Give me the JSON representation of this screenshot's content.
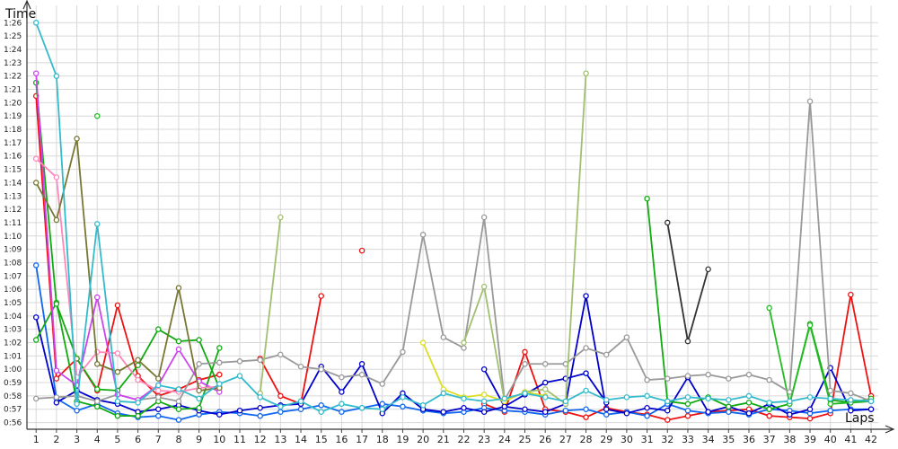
{
  "chart_data": {
    "type": "line",
    "title": "",
    "ylabel": "Time",
    "xlabel": "Laps",
    "x": [
      1,
      2,
      3,
      4,
      5,
      6,
      7,
      8,
      9,
      10,
      11,
      12,
      13,
      14,
      15,
      16,
      17,
      18,
      19,
      20,
      21,
      22,
      23,
      24,
      25,
      26,
      27,
      28,
      29,
      30,
      31,
      32,
      33,
      34,
      35,
      36,
      37,
      38,
      39,
      40,
      41,
      42
    ],
    "xlim": [
      0.55,
      42.35
    ],
    "y_ticks": [
      "0:56",
      "0:57",
      "0:58",
      "0:59",
      "1:00",
      "1:01",
      "1:02",
      "1:03",
      "1:04",
      "1:05",
      "1:06",
      "1:07",
      "1:08",
      "1:09",
      "1:10",
      "1:11",
      "1:12",
      "1:13",
      "1:14",
      "1:15",
      "1:16",
      "1:17",
      "1:18",
      "1:19",
      "1:20",
      "1:21",
      "1:22",
      "1:23",
      "1:24",
      "1:25",
      "1:26"
    ],
    "y_ticks_seconds": [
      56,
      57,
      58,
      59,
      60,
      61,
      62,
      63,
      64,
      65,
      66,
      67,
      68,
      69,
      70,
      71,
      72,
      73,
      74,
      75,
      76,
      77,
      78,
      79,
      80,
      81,
      82,
      83,
      84,
      85,
      86
    ],
    "ylim_seconds": [
      55.5,
      87.3
    ],
    "grid": true,
    "legend": "none",
    "series": [
      {
        "color": "#ee1111",
        "values": [
          80.5,
          59.3,
          60.8,
          58.4,
          64.8,
          59.5,
          58.0,
          58.5,
          59.2,
          59.6,
          null,
          null,
          null,
          null,
          null,
          null,
          null,
          null,
          null,
          null,
          null,
          null,
          null,
          null,
          null,
          null,
          null,
          null,
          null,
          null,
          null,
          null,
          null,
          null,
          null,
          null,
          null,
          null,
          null,
          null,
          null,
          null
        ]
      },
      {
        "color": "#ee1111",
        "values": [
          null,
          null,
          null,
          null,
          null,
          null,
          null,
          null,
          null,
          null,
          null,
          60.8,
          58.0,
          57.4,
          65.5,
          null,
          null,
          null,
          null,
          null,
          null,
          null,
          null,
          null,
          null,
          null,
          null,
          null,
          null,
          null,
          null,
          null,
          null,
          null,
          null,
          null,
          null,
          null,
          null,
          null,
          null,
          null
        ]
      },
      {
        "color": "#ee1111",
        "values": [
          null,
          null,
          null,
          null,
          null,
          null,
          null,
          null,
          null,
          null,
          null,
          null,
          null,
          null,
          null,
          null,
          68.9,
          null,
          null,
          null,
          null,
          null,
          null,
          null,
          null,
          null,
          null,
          null,
          null,
          null,
          null,
          null,
          null,
          null,
          null,
          null,
          null,
          null,
          null,
          null,
          null,
          null
        ]
      },
      {
        "color": "#ee1111",
        "values": [
          null,
          null,
          null,
          null,
          null,
          null,
          null,
          null,
          null,
          null,
          null,
          null,
          null,
          null,
          null,
          null,
          null,
          null,
          null,
          null,
          null,
          null,
          57.4,
          56.8,
          61.3,
          57.0,
          56.8,
          56.4,
          57.1,
          56.8,
          56.6,
          56.2,
          56.5,
          56.8,
          56.9,
          57.0,
          56.5,
          56.4,
          56.3,
          56.7,
          65.6,
          58.0
        ]
      },
      {
        "color": "#1166ee",
        "values": [
          67.8,
          57.8,
          56.9,
          57.4,
          56.7,
          56.4,
          56.5,
          56.2,
          56.6,
          56.8,
          56.7,
          56.5,
          56.8,
          57.0,
          57.3,
          56.8,
          57.1,
          57.4,
          57.2,
          56.9,
          56.7,
          56.8,
          57.1,
          56.9,
          56.8,
          56.6,
          56.9,
          57.0,
          56.6,
          56.8,
          56.5,
          57.4,
          56.9,
          56.7,
          56.8,
          56.6,
          57.0,
          56.9,
          56.7,
          56.9,
          57.0,
          57.0
        ]
      },
      {
        "color": "#0000cc",
        "values": [
          63.9,
          57.5,
          58.4,
          57.7,
          57.4,
          56.8,
          57.0,
          57.3,
          56.9,
          56.6,
          56.9,
          57.1,
          57.3,
          57.4,
          60.2,
          58.3,
          60.4,
          56.7,
          58.2,
          57.0,
          56.8,
          57.1,
          56.8,
          57.2,
          57.0,
          56.8,
          57.4,
          65.5,
          57.0,
          56.7,
          57.1,
          56.9,
          59.4,
          56.8,
          57.2,
          56.7,
          57.4,
          56.6,
          57.0,
          60.1,
          56.9,
          57.0
        ]
      },
      {
        "color": "#0000cc",
        "values": [
          null,
          null,
          null,
          null,
          null,
          null,
          null,
          null,
          null,
          null,
          null,
          null,
          null,
          null,
          null,
          null,
          null,
          null,
          null,
          null,
          null,
          null,
          60.0,
          57.2,
          58.1,
          59.0,
          59.3,
          59.7,
          57.5,
          null,
          null,
          null,
          null,
          null,
          null,
          null,
          null,
          null,
          null,
          null,
          null,
          null
        ]
      },
      {
        "color": "#11aa11",
        "values": [
          62.2,
          65.0,
          57.6,
          57.2,
          56.5,
          56.5,
          57.6,
          57.0,
          57.1,
          61.6,
          null,
          null,
          null,
          null,
          null,
          null,
          null,
          null,
          null,
          null,
          null,
          null,
          null,
          null,
          null,
          null,
          null,
          null,
          null,
          null,
          null,
          null,
          null,
          null,
          null,
          null,
          null,
          null,
          null,
          null,
          null,
          null
        ]
      },
      {
        "color": "#11aa11",
        "values": [
          81.5,
          64.9,
          60.8,
          58.5,
          58.4,
          60.3,
          63.0,
          62.1,
          62.2,
          58.6,
          null,
          null,
          null,
          null,
          null,
          null,
          null,
          null,
          null,
          null,
          null,
          null,
          null,
          null,
          null,
          null,
          null,
          null,
          null,
          null,
          null,
          null,
          null,
          null,
          null,
          null,
          null,
          null,
          null,
          null,
          null,
          null
        ]
      },
      {
        "color": "#11aa11",
        "values": [
          null,
          null,
          null,
          null,
          null,
          null,
          null,
          null,
          null,
          null,
          null,
          null,
          null,
          null,
          null,
          null,
          null,
          null,
          null,
          null,
          null,
          null,
          null,
          null,
          null,
          null,
          null,
          null,
          null,
          null,
          72.8,
          57.6,
          57.4,
          57.9,
          57.2,
          57.5,
          57.0,
          57.4,
          63.4,
          57.7,
          57.5,
          57.6
        ]
      },
      {
        "color": "#22bb22",
        "values": [
          null,
          null,
          null,
          79.0,
          null,
          null,
          null,
          null,
          null,
          null,
          null,
          null,
          null,
          null,
          null,
          null,
          null,
          null,
          null,
          null,
          null,
          null,
          null,
          null,
          null,
          null,
          null,
          null,
          null,
          null,
          null,
          null,
          null,
          null,
          null,
          null,
          null,
          null,
          null,
          null,
          null,
          null
        ]
      },
      {
        "color": "#22bb22",
        "values": [
          null,
          null,
          null,
          null,
          null,
          null,
          null,
          null,
          null,
          null,
          null,
          null,
          null,
          null,
          null,
          null,
          null,
          null,
          null,
          null,
          null,
          null,
          null,
          null,
          null,
          null,
          null,
          null,
          null,
          null,
          null,
          null,
          null,
          null,
          null,
          null,
          64.6,
          57.4,
          63.3,
          57.4,
          57.5,
          57.8
        ]
      },
      {
        "color": "#999999",
        "values": [
          57.8,
          57.9,
          58.0,
          57.6,
          58.1,
          57.7,
          57.9,
          57.6,
          60.4,
          60.5,
          60.6,
          60.7,
          61.1,
          60.2,
          60.0,
          59.4,
          59.6,
          58.9,
          61.3,
          70.1,
          62.4,
          61.6,
          71.4,
          57.7,
          60.4,
          60.4,
          60.4,
          61.6,
          61.1,
          62.4,
          59.2,
          59.3,
          59.5,
          59.6,
          59.3,
          59.6,
          59.2,
          58.3,
          80.1,
          58.4,
          58.2,
          57.6
        ]
      },
      {
        "color": "#a0c070",
        "values": [
          null,
          null,
          null,
          null,
          null,
          null,
          null,
          null,
          null,
          null,
          null,
          58.2,
          71.4,
          null,
          null,
          null,
          null,
          null,
          null,
          null,
          null,
          62.0,
          66.2,
          57.6,
          58.3,
          58.5,
          57.4,
          82.2,
          null,
          null,
          null,
          null,
          null,
          null,
          null,
          null,
          null,
          null,
          null,
          null,
          null,
          null
        ]
      },
      {
        "color": "#cc44ee",
        "values": [
          82.2,
          59.9,
          58.8,
          65.4,
          58.1,
          57.7,
          58.8,
          61.5,
          59.1,
          58.3,
          null,
          null,
          null,
          null,
          null,
          null,
          null,
          null,
          null,
          null,
          null,
          null,
          null,
          null,
          null,
          null,
          null,
          null,
          null,
          null,
          null,
          null,
          null,
          null,
          null,
          null,
          null,
          null,
          null,
          null,
          null,
          null
        ]
      },
      {
        "color": "#ff88bb",
        "values": [
          75.8,
          74.4,
          59.4,
          61.3,
          61.2,
          59.2,
          58.4,
          58.3,
          58.6,
          58.7,
          null,
          null,
          null,
          null,
          null,
          null,
          null,
          null,
          null,
          null,
          null,
          null,
          null,
          null,
          null,
          null,
          null,
          null,
          null,
          null,
          null,
          null,
          null,
          null,
          null,
          null,
          null,
          null,
          null,
          null,
          null,
          null
        ]
      },
      {
        "color": "#777733",
        "values": [
          74.0,
          71.2,
          77.3,
          60.4,
          59.8,
          60.7,
          59.3,
          66.1,
          58.4,
          58.6,
          null,
          null,
          null,
          null,
          null,
          null,
          null,
          null,
          null,
          null,
          null,
          null,
          null,
          null,
          null,
          null,
          null,
          null,
          null,
          null,
          null,
          null,
          null,
          null,
          null,
          null,
          null,
          null,
          null,
          null,
          null,
          null
        ]
      },
      {
        "color": "#333333",
        "values": [
          null,
          null,
          null,
          null,
          null,
          null,
          null,
          null,
          null,
          null,
          null,
          null,
          null,
          null,
          null,
          null,
          null,
          null,
          null,
          null,
          null,
          null,
          null,
          null,
          null,
          null,
          null,
          null,
          null,
          null,
          null,
          71.0,
          62.1,
          67.5,
          null,
          null,
          null,
          null,
          null,
          null,
          null,
          null
        ]
      },
      {
        "color": "#dddd22",
        "values": [
          null,
          null,
          null,
          null,
          null,
          null,
          null,
          null,
          null,
          null,
          null,
          null,
          null,
          null,
          null,
          null,
          null,
          null,
          null,
          62.0,
          58.5,
          57.9,
          58.1,
          57.6,
          58.3,
          58.0,
          null,
          null,
          null,
          null,
          null,
          null,
          null,
          null,
          null,
          null,
          null,
          null,
          null,
          null,
          null,
          null
        ]
      },
      {
        "color": "#33bbcc",
        "values": [
          86.0,
          82.0,
          57.4,
          70.9,
          57.6,
          57.5,
          58.8,
          58.5,
          57.8,
          58.9,
          59.5,
          57.9,
          57.2,
          57.6,
          56.8,
          57.4,
          57.1,
          57.0,
          57.9,
          57.3,
          58.2,
          57.8,
          57.6,
          57.8,
          58.2,
          57.9,
          57.6,
          58.4,
          57.7,
          57.9,
          58.0,
          57.6,
          57.9,
          57.8,
          57.7,
          58.0,
          57.5,
          57.6,
          57.9,
          57.8,
          57.7,
          57.6
        ]
      }
    ]
  }
}
